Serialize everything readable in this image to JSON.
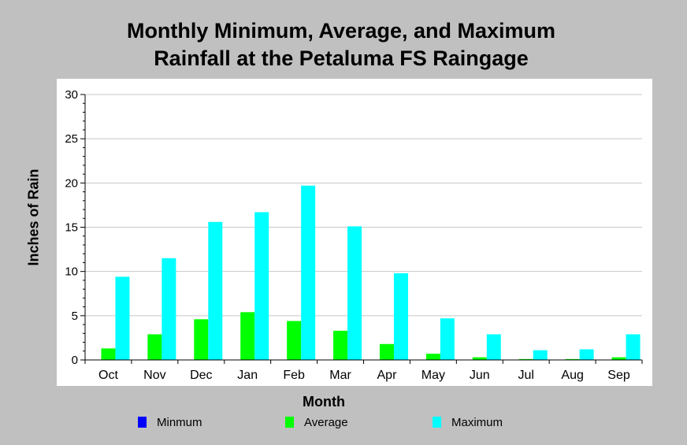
{
  "chart_data": {
    "type": "bar",
    "title": [
      "Monthly Minimum, Average, and Maximum",
      "Rainfall at the Petaluma FS Raingage"
    ],
    "xlabel": "Month",
    "ylabel": "Inches of Rain",
    "ylim": [
      0,
      30
    ],
    "yticks": [
      "0",
      "5",
      "10",
      "15",
      "20",
      "25",
      "30"
    ],
    "grid": true,
    "legend_position": "bottom",
    "categories": [
      "Oct",
      "Nov",
      "Dec",
      "Jan",
      "Feb",
      "Mar",
      "Apr",
      "May",
      "Jun",
      "Jul",
      "Aug",
      "Sep"
    ],
    "series": [
      {
        "name": "Minmum",
        "color": "#0000ff",
        "values": [
          0,
          0,
          0,
          0,
          0,
          0,
          0,
          0,
          0,
          0,
          0,
          0
        ]
      },
      {
        "name": "Average",
        "color": "#00ff00",
        "values": [
          1.3,
          2.9,
          4.6,
          5.4,
          4.4,
          3.3,
          1.8,
          0.7,
          0.3,
          0.1,
          0.1,
          0.3
        ]
      },
      {
        "name": "Maximum",
        "color": "#00ffff",
        "values": [
          9.4,
          11.5,
          15.6,
          16.7,
          19.7,
          15.1,
          9.8,
          4.7,
          2.9,
          1.1,
          1.2,
          2.9
        ]
      }
    ]
  }
}
